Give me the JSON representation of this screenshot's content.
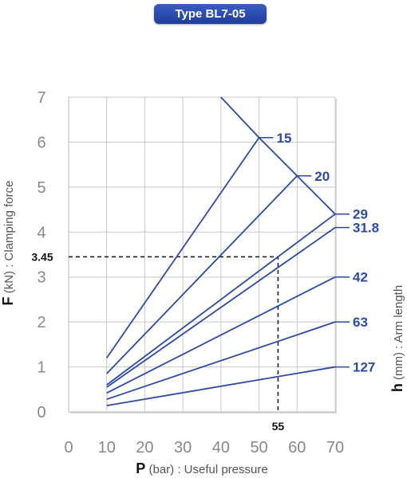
{
  "header": {
    "type_label": "Type BL7-05"
  },
  "colors": {
    "accent": "#2b4aa6",
    "series": "#2b4aa6",
    "grid": "#c8c8c8",
    "axis_text": "#888888"
  },
  "chart_data": {
    "type": "line",
    "title": "Type BL7-05",
    "xlabel_bold": "P",
    "xlabel_rest": "(bar) : Useful pressure",
    "ylabel_bold": "F",
    "ylabel_rest": "(kN) : Clamping force",
    "y2label_bold": "h",
    "y2label_rest": "(mm) : Arm length",
    "xlim": [
      0,
      70
    ],
    "ylim": [
      0,
      7
    ],
    "xticks": [
      0,
      10,
      20,
      30,
      40,
      50,
      60,
      70
    ],
    "yticks": [
      0,
      1,
      2,
      3,
      4,
      5,
      6,
      7
    ],
    "grid": true,
    "series": [
      {
        "name": "15",
        "points": [
          [
            10,
            1.2
          ],
          [
            50,
            6.1
          ]
        ]
      },
      {
        "name": "20",
        "points": [
          [
            10,
            0.85
          ],
          [
            60,
            5.25
          ]
        ]
      },
      {
        "name": "29",
        "points": [
          [
            10,
            0.6
          ],
          [
            70,
            4.4
          ]
        ]
      },
      {
        "name": "31.8",
        "points": [
          [
            10,
            0.55
          ],
          [
            70,
            4.1
          ]
        ]
      },
      {
        "name": "42",
        "points": [
          [
            10,
            0.42
          ],
          [
            70,
            3.0
          ]
        ]
      },
      {
        "name": "63",
        "points": [
          [
            10,
            0.28
          ],
          [
            70,
            2.0
          ]
        ]
      },
      {
        "name": "127",
        "points": [
          [
            10,
            0.14
          ],
          [
            70,
            1.0
          ]
        ]
      }
    ],
    "limit_line": {
      "points": [
        [
          40,
          7.0
        ],
        [
          50,
          6.1
        ],
        [
          60,
          5.25
        ],
        [
          70,
          4.4
        ]
      ]
    },
    "annotation": {
      "x": 55,
      "y": 3.45,
      "x_label": "55",
      "y_label": "3.45"
    }
  }
}
